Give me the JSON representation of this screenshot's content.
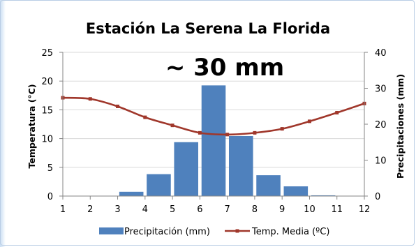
{
  "chart_data": {
    "type": "bar",
    "title": "Estación La Serena La Florida",
    "annotation": "~ 30 mm",
    "x": [
      1,
      2,
      3,
      4,
      5,
      6,
      7,
      8,
      9,
      10,
      11,
      12
    ],
    "xlim": [
      1,
      12
    ],
    "ylabel_left": "Temperatura (°C)",
    "ylabel_right": "Precipitaciones (mm)",
    "ylim_left": [
      0,
      25
    ],
    "ylim_right": [
      0,
      40
    ],
    "yticks_left": [
      0,
      5,
      10,
      15,
      20,
      25
    ],
    "yticks_right": [
      0,
      10,
      20,
      30,
      40
    ],
    "grid": true,
    "legend_position": "bottom",
    "series": [
      {
        "name": "Precipitación (mm)",
        "type": "bar",
        "axis": "right",
        "color": "#4f81bd",
        "x": [
          3,
          4,
          5,
          6,
          7,
          8,
          9,
          10,
          11
        ],
        "values": [
          0.1,
          1.2,
          6.1,
          15.0,
          30.8,
          16.7,
          5.8,
          2.7,
          0.2
        ]
      },
      {
        "name": "Temp. Media (ºC)",
        "type": "line",
        "axis": "left",
        "color": "#a0372b",
        "x": [
          1,
          2,
          3,
          4,
          5,
          6,
          7,
          8,
          9,
          10,
          11,
          12
        ],
        "values": [
          17.1,
          16.9,
          15.6,
          13.7,
          12.3,
          11.0,
          10.7,
          11.0,
          11.7,
          13.0,
          14.5,
          16.1
        ]
      }
    ]
  }
}
